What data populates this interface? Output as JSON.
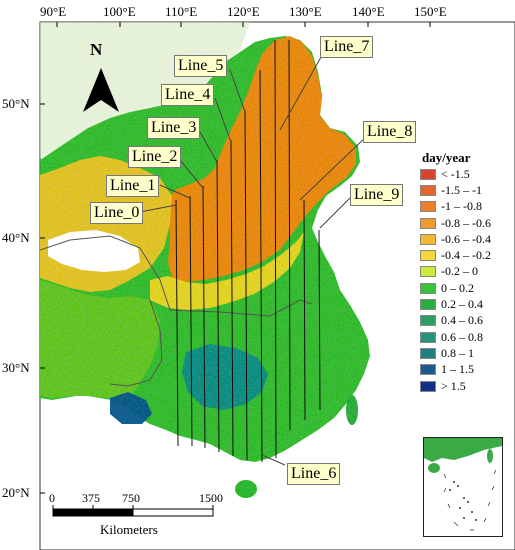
{
  "longitude_labels": [
    "90°E",
    "100°E",
    "110°E",
    "120°E",
    "130°E",
    "140°E",
    "150°E"
  ],
  "latitude_labels": [
    "50°N",
    "40°N",
    "30°N",
    "20°N"
  ],
  "north_arrow": {
    "letter": "N",
    "icon": "north-arrow-icon"
  },
  "line_labels": [
    "Line_0",
    "Line_1",
    "Line_2",
    "Line_3",
    "Line_4",
    "Line_5",
    "Line_6",
    "Line_7",
    "Line_8",
    "Line_9"
  ],
  "legend": {
    "title": "day/year",
    "items": [
      {
        "label": "< -1.5",
        "color": "#d8442e"
      },
      {
        "label": "-1.5 – -1",
        "color": "#e5652e"
      },
      {
        "label": "-1 – -0.8",
        "color": "#ee7f2a"
      },
      {
        "label": "-0.8 – -0.6",
        "color": "#f09a2e"
      },
      {
        "label": "-0.6 – -0.4",
        "color": "#f3b733"
      },
      {
        "label": "-0.4 – -0.2",
        "color": "#f5d838"
      },
      {
        "label": "-0.2 – 0",
        "color": "#c9ec3a"
      },
      {
        "label": "0 – 0.2",
        "color": "#38c43a"
      },
      {
        "label": "0.2 – 0.4",
        "color": "#2aae3f"
      },
      {
        "label": "0.4 – 0.6",
        "color": "#2ca063"
      },
      {
        "label": "0.6 – 0.8",
        "color": "#24947d"
      },
      {
        "label": "0.8 – 1",
        "color": "#21807f"
      },
      {
        "label": "1 – 1.5",
        "color": "#1c5a8e"
      },
      {
        "label": "> 1.5",
        "color": "#142f87"
      }
    ]
  },
  "scale_bar": {
    "ticks": [
      "0",
      "375",
      "750",
      "1500"
    ],
    "unit": "Kilometers"
  }
}
